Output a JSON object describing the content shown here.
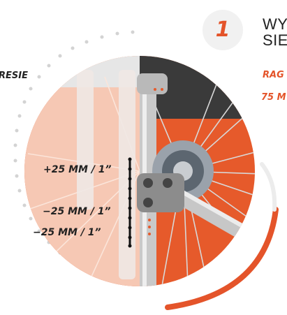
{
  "step": {
    "number": "1"
  },
  "header": {
    "title_line1": "WY",
    "title_line2": "SIE",
    "orange_line1": "RAG",
    "orange_line2": "75 M"
  },
  "side_caption": "RESIE",
  "adjustments": {
    "up_label": "+25 MM / 1”",
    "down_label_1": "−25 MM / 1”",
    "down_label_2": "−25 MM / 1”"
  },
  "colors": {
    "accent": "#e4542a",
    "photo_light_tint": "#f6c8b4",
    "dots": "#d3d3d3"
  }
}
